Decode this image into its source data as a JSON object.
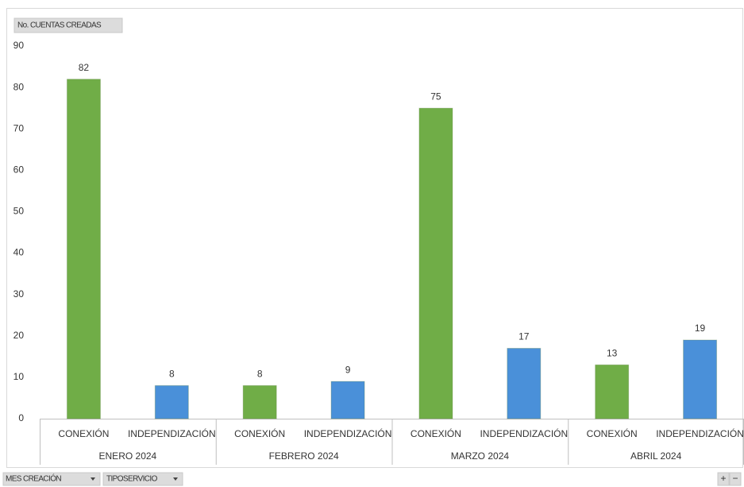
{
  "chart_data": {
    "type": "bar",
    "value_field": "No. CUENTAS CREADAS",
    "axis_fields": [
      "MES CREACIÓN",
      "TIPOSERVICIO"
    ],
    "zoom_buttons": [
      "+",
      "−"
    ],
    "groups": [
      {
        "name": "ENERO 2024",
        "categories": [
          "CONEXIÓN",
          "INDEPENDIZACIÓN"
        ],
        "values": [
          82,
          8
        ]
      },
      {
        "name": "FEBRERO 2024",
        "categories": [
          "CONEXIÓN",
          "INDEPENDIZACIÓN"
        ],
        "values": [
          8,
          9
        ]
      },
      {
        "name": "MARZO 2024",
        "categories": [
          "CONEXIÓN",
          "INDEPENDIZACIÓN"
        ],
        "values": [
          75,
          17
        ]
      },
      {
        "name": "ABRIL 2024",
        "categories": [
          "CONEXIÓN",
          "INDEPENDIZACIÓN"
        ],
        "values": [
          13,
          19
        ]
      }
    ],
    "colors": [
      "#70ad47",
      "#4a90d9"
    ],
    "ylim": [
      0,
      90
    ],
    "yticks": [
      0,
      10,
      20,
      30,
      40,
      50,
      60,
      70,
      80,
      90
    ],
    "grid": false
  }
}
